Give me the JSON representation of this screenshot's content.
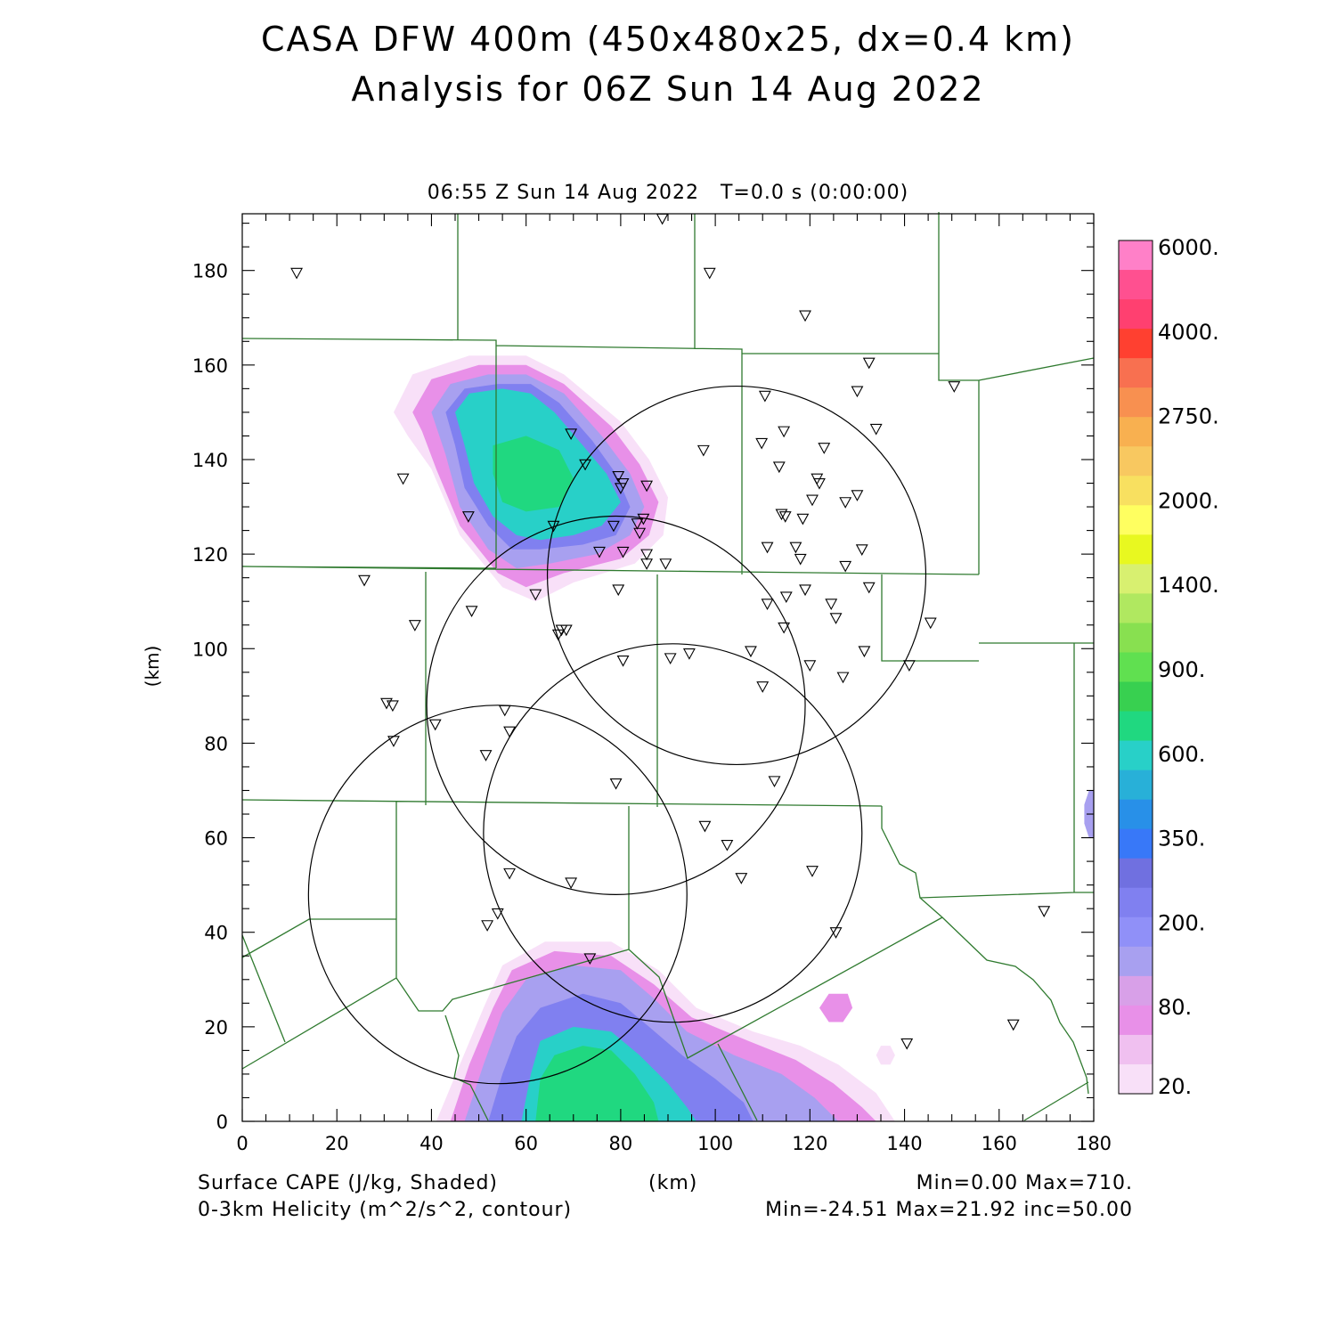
{
  "title": "CASA DFW 400m (450x480x25, dx=0.4 km)",
  "subtitle": "Analysis for 06Z Sun 14 Aug 2022",
  "time_label": "06:55 Z Sun 14 Aug 2022   T=0.0 s (0:00:00)",
  "x_axis": {
    "label": "(km)",
    "ticks": [
      "0",
      "20",
      "40",
      "60",
      "80",
      "100",
      "120",
      "140",
      "160",
      "180"
    ],
    "range": [
      0,
      180
    ]
  },
  "y_axis": {
    "label": "(km)",
    "ticks": [
      "0",
      "20",
      "40",
      "60",
      "80",
      "100",
      "120",
      "140",
      "160",
      "180"
    ],
    "range": [
      0,
      192
    ]
  },
  "footer": {
    "field1": "Surface CAPE (J/kg, Shaded)",
    "field1_stats": "Min=0.00 Max=710.",
    "field2": "0-3km Helicity (m^2/s^2, contour)",
    "field2_stats": "Min=-24.51 Max=21.92 inc=50.00"
  },
  "colorbar": {
    "labels": [
      "6000.",
      "4000.",
      "2750.",
      "2000.",
      "1400.",
      "900.",
      "600.",
      "350.",
      "200.",
      "80.",
      "20."
    ],
    "colors": [
      "#ff80c8",
      "#ff5090",
      "#ff4070",
      "#ff4030",
      "#f87050",
      "#f89050",
      "#f8b050",
      "#f8c860",
      "#f8e060",
      "#ffff60",
      "#e8f820",
      "#d8f070",
      "#b0e860",
      "#88e050",
      "#60e050",
      "#38d050",
      "#20d880",
      "#28d0c8",
      "#28b0d8",
      "#2890e8",
      "#3878f8",
      "#7070e0",
      "#8080f0",
      "#9090f8",
      "#a8a0f0",
      "#d8a0e8",
      "#e890e8",
      "#f0c0f0",
      "#f8e0f8"
    ],
    "color_count": 29
  },
  "radar_circles_km": [
    {
      "cx": 104.5,
      "cy": 115.5,
      "r": 40
    },
    {
      "cx": 79,
      "cy": 88,
      "r": 40
    },
    {
      "cx": 91,
      "cy": 61,
      "r": 40
    },
    {
      "cx": 54,
      "cy": 48,
      "r": 40
    }
  ],
  "stations_km": [
    [
      11.5,
      179.5
    ],
    [
      88.8,
      191
    ],
    [
      98.8,
      179.5
    ],
    [
      119,
      170.5
    ],
    [
      132.5,
      160.5
    ],
    [
      150.5,
      155.5
    ],
    [
      110.5,
      153.5
    ],
    [
      130,
      154.5
    ],
    [
      134,
      146.5
    ],
    [
      69.5,
      145.5
    ],
    [
      114.5,
      146
    ],
    [
      97.5,
      142
    ],
    [
      109.8,
      143.5
    ],
    [
      123,
      142.5
    ],
    [
      72.5,
      139
    ],
    [
      113.5,
      138.5
    ],
    [
      121.5,
      136
    ],
    [
      122,
      135
    ],
    [
      79.5,
      136.5
    ],
    [
      80.5,
      135
    ],
    [
      80,
      134
    ],
    [
      85.5,
      134.5
    ],
    [
      34,
      136
    ],
    [
      130,
      132.5
    ],
    [
      127.5,
      131
    ],
    [
      120.5,
      131.5
    ],
    [
      114,
      128.5
    ],
    [
      114.8,
      128
    ],
    [
      118.5,
      127.5
    ],
    [
      47.8,
      128
    ],
    [
      65.8,
      126
    ],
    [
      78.5,
      126
    ],
    [
      83.5,
      126.5
    ],
    [
      84.8,
      127.5
    ],
    [
      84,
      124.5
    ],
    [
      111,
      121.5
    ],
    [
      117,
      121.5
    ],
    [
      131,
      121
    ],
    [
      75.5,
      120.5
    ],
    [
      80.5,
      120.5
    ],
    [
      85.5,
      120
    ],
    [
      118,
      119
    ],
    [
      85.5,
      118
    ],
    [
      89.5,
      118
    ],
    [
      127.5,
      117.5
    ],
    [
      25.8,
      114.5
    ],
    [
      62,
      111.5
    ],
    [
      79.5,
      112.5
    ],
    [
      119,
      112.5
    ],
    [
      115,
      111
    ],
    [
      111,
      109.5
    ],
    [
      124.5,
      109.5
    ],
    [
      132.5,
      113
    ],
    [
      48.5,
      108
    ],
    [
      125.5,
      106.5
    ],
    [
      36.5,
      105
    ],
    [
      68.5,
      104
    ],
    [
      67.5,
      104
    ],
    [
      66.8,
      103
    ],
    [
      145.5,
      105.5
    ],
    [
      114.5,
      104.5
    ],
    [
      107.5,
      99.5
    ],
    [
      131.5,
      99.5
    ],
    [
      80.5,
      97.5
    ],
    [
      90.5,
      98
    ],
    [
      94.5,
      99
    ],
    [
      120,
      96.5
    ],
    [
      141,
      96.5
    ],
    [
      127,
      94
    ],
    [
      110,
      92
    ],
    [
      30.5,
      88.5
    ],
    [
      31.8,
      88
    ],
    [
      55.5,
      87
    ],
    [
      40.8,
      84
    ],
    [
      56.5,
      82.5
    ],
    [
      32,
      80.5
    ],
    [
      51.5,
      77.5
    ],
    [
      79,
      71.5
    ],
    [
      112.5,
      72
    ],
    [
      97.8,
      62.5
    ],
    [
      102.5,
      58.5
    ],
    [
      56.5,
      52.5
    ],
    [
      105.5,
      51.5
    ],
    [
      120.5,
      53
    ],
    [
      69.5,
      50.5
    ],
    [
      54,
      44
    ],
    [
      51.8,
      41.5
    ],
    [
      169.5,
      44.5
    ],
    [
      125.5,
      40
    ],
    [
      73.5,
      34.5
    ],
    [
      163,
      20.5
    ],
    [
      140.5,
      16.5
    ]
  ],
  "cape_blobs_km": [
    {
      "level": 1,
      "pts": [
        [
          32,
          150
        ],
        [
          36,
          158
        ],
        [
          48,
          162
        ],
        [
          60,
          162
        ],
        [
          68,
          158
        ],
        [
          80,
          148
        ],
        [
          86,
          140
        ],
        [
          90,
          132
        ],
        [
          89,
          124
        ],
        [
          83,
          118
        ],
        [
          70,
          114
        ],
        [
          62,
          110
        ],
        [
          55,
          113
        ],
        [
          46,
          124
        ],
        [
          40,
          138
        ],
        [
          35,
          145
        ]
      ]
    },
    {
      "level": 2,
      "pts": [
        [
          36,
          150
        ],
        [
          40,
          157
        ],
        [
          50,
          160
        ],
        [
          60,
          160
        ],
        [
          68,
          156
        ],
        [
          78,
          147
        ],
        [
          84,
          139
        ],
        [
          88,
          131
        ],
        [
          86,
          124
        ],
        [
          80,
          119
        ],
        [
          68,
          116
        ],
        [
          60,
          113
        ],
        [
          54,
          116
        ],
        [
          46,
          126
        ],
        [
          41,
          138
        ],
        [
          38,
          146
        ]
      ]
    },
    {
      "level": 3,
      "pts": [
        [
          40,
          150
        ],
        [
          44,
          156
        ],
        [
          52,
          158
        ],
        [
          60,
          158
        ],
        [
          68,
          154
        ],
        [
          76,
          145
        ],
        [
          82,
          137
        ],
        [
          85,
          130
        ],
        [
          82,
          124
        ],
        [
          75,
          120
        ],
        [
          65,
          118
        ],
        [
          58,
          117
        ],
        [
          52,
          121
        ],
        [
          46,
          130
        ],
        [
          43,
          141
        ]
      ]
    },
    {
      "level": 4,
      "pts": [
        [
          43,
          150
        ],
        [
          47,
          155
        ],
        [
          54,
          156
        ],
        [
          61,
          156
        ],
        [
          67,
          152
        ],
        [
          74,
          144
        ],
        [
          79,
          137
        ],
        [
          82,
          130
        ],
        [
          79,
          124
        ],
        [
          72,
          122
        ],
        [
          63,
          121
        ],
        [
          57,
          121
        ],
        [
          52,
          126
        ],
        [
          47,
          134
        ],
        [
          45,
          143
        ]
      ]
    },
    {
      "level": 5,
      "pts": [
        [
          45,
          150
        ],
        [
          48,
          154
        ],
        [
          55,
          155
        ],
        [
          61,
          154
        ],
        [
          66,
          150
        ],
        [
          72,
          143
        ],
        [
          77,
          137
        ],
        [
          80,
          131
        ],
        [
          76,
          126
        ],
        [
          70,
          124
        ],
        [
          63,
          123
        ],
        [
          58,
          124
        ],
        [
          53,
          128
        ],
        [
          49,
          135
        ],
        [
          47,
          143
        ]
      ]
    },
    {
      "level": 6,
      "pts": [
        [
          53,
          143
        ],
        [
          60,
          145
        ],
        [
          67,
          142
        ],
        [
          70,
          136
        ],
        [
          67,
          130
        ],
        [
          60,
          129
        ],
        [
          55,
          131
        ],
        [
          53,
          137
        ]
      ]
    },
    {
      "level": 1,
      "pts": [
        [
          41,
          0
        ],
        [
          46,
          12
        ],
        [
          51,
          24
        ],
        [
          55,
          33
        ],
        [
          64,
          38
        ],
        [
          78,
          38
        ],
        [
          88,
          32
        ],
        [
          96,
          24
        ],
        [
          108,
          19
        ],
        [
          118,
          16
        ],
        [
          126,
          12
        ],
        [
          134,
          6
        ],
        [
          138,
          0
        ]
      ]
    },
    {
      "level": 2,
      "pts": [
        [
          44,
          0
        ],
        [
          48,
          12
        ],
        [
          53,
          24
        ],
        [
          57,
          32
        ],
        [
          66,
          36
        ],
        [
          78,
          35
        ],
        [
          87,
          29
        ],
        [
          95,
          22
        ],
        [
          107,
          17
        ],
        [
          117,
          13
        ],
        [
          125,
          8
        ],
        [
          131,
          3
        ],
        [
          134,
          0
        ]
      ]
    },
    {
      "level": 3,
      "pts": [
        [
          47,
          0
        ],
        [
          51,
          12
        ],
        [
          55,
          23
        ],
        [
          60,
          30
        ],
        [
          70,
          33
        ],
        [
          80,
          32
        ],
        [
          87,
          26
        ],
        [
          94,
          19
        ],
        [
          104,
          14
        ],
        [
          114,
          10
        ],
        [
          121,
          5
        ],
        [
          126,
          0
        ]
      ]
    },
    {
      "level": 4,
      "pts": [
        [
          52,
          0
        ],
        [
          55,
          10
        ],
        [
          58,
          18
        ],
        [
          63,
          24
        ],
        [
          72,
          27
        ],
        [
          80,
          25
        ],
        [
          86,
          20
        ],
        [
          93,
          14
        ],
        [
          100,
          9
        ],
        [
          106,
          4
        ],
        [
          108,
          0
        ]
      ]
    },
    {
      "level": 5,
      "pts": [
        [
          59,
          0
        ],
        [
          61,
          10
        ],
        [
          63,
          17
        ],
        [
          70,
          20
        ],
        [
          78,
          19
        ],
        [
          84,
          14
        ],
        [
          90,
          8
        ],
        [
          94,
          3
        ],
        [
          96,
          0
        ]
      ]
    },
    {
      "level": 6,
      "pts": [
        [
          62,
          0
        ],
        [
          63,
          9
        ],
        [
          66,
          14
        ],
        [
          72,
          16
        ],
        [
          78,
          15
        ],
        [
          83,
          10
        ],
        [
          87,
          4
        ],
        [
          88,
          0
        ]
      ]
    },
    {
      "level": 2,
      "pts": [
        [
          122,
          24
        ],
        [
          124,
          27
        ],
        [
          128,
          27
        ],
        [
          129,
          24
        ],
        [
          127,
          21
        ],
        [
          124,
          21
        ]
      ]
    },
    {
      "level": 1,
      "pts": [
        [
          134,
          14
        ],
        [
          135,
          16
        ],
        [
          137,
          16
        ],
        [
          138,
          14
        ],
        [
          137,
          12
        ],
        [
          135,
          12
        ]
      ]
    },
    {
      "level": 3,
      "pts": [
        [
          179,
          60
        ],
        [
          178,
          63
        ],
        [
          178,
          67
        ],
        [
          179,
          70
        ],
        [
          180,
          70
        ],
        [
          180,
          60
        ]
      ]
    }
  ]
}
